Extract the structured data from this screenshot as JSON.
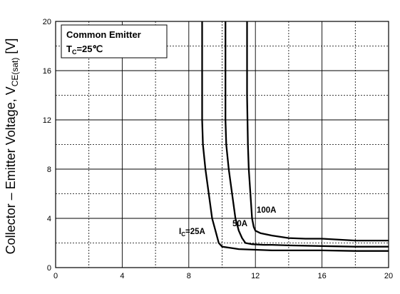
{
  "chart_data": {
    "type": "line",
    "xlabel": "",
    "ylabel": "Collector – Emitter Voltage, V",
    "ylabel_sub": "CE(sat)",
    "ylabel_unit": " [V]",
    "xlim": [
      0,
      20
    ],
    "ylim": [
      0,
      20
    ],
    "x_ticks": [
      0,
      4,
      8,
      12,
      16,
      20
    ],
    "y_ticks": [
      0,
      4,
      8,
      12,
      16,
      20
    ],
    "x_minor_ticks": [
      2,
      6,
      10,
      14,
      18
    ],
    "y_minor_ticks": [
      2,
      6,
      10,
      14,
      18
    ],
    "grid": true,
    "annotation": {
      "line1": "Common Emitter",
      "line2_main": "T",
      "line2_sub": "C",
      "line2_rest": "=25℃"
    },
    "series": [
      {
        "label_main": "I",
        "label_sub": "C",
        "label_rest": "=25A",
        "x": [
          8.8,
          8.8,
          8.85,
          9.0,
          9.2,
          9.4,
          9.6,
          9.8,
          10.0,
          10.5,
          11.0,
          12.0,
          13.0,
          14.0,
          16.0,
          18.0,
          20.0
        ],
        "y": [
          20.0,
          12.0,
          10.0,
          8.0,
          6.0,
          4.0,
          3.0,
          2.0,
          1.7,
          1.6,
          1.5,
          1.45,
          1.4,
          1.4,
          1.4,
          1.35,
          1.35
        ]
      },
      {
        "label": "50A",
        "x": [
          10.2,
          10.2,
          10.25,
          10.4,
          10.6,
          10.8,
          11.0,
          11.2,
          11.4,
          11.8,
          12.5,
          13.0,
          14.0,
          16.0,
          18.0,
          20.0
        ],
        "y": [
          20.0,
          12.0,
          10.0,
          8.0,
          6.0,
          4.0,
          3.0,
          2.4,
          2.0,
          1.9,
          1.85,
          1.85,
          1.8,
          1.75,
          1.7,
          1.7
        ],
        "unlabeled_line": true
      },
      {
        "label": "100A",
        "x": [
          11.5,
          11.5,
          11.55,
          11.6,
          11.7,
          11.8,
          11.9,
          12.0,
          12.3,
          13.0,
          14.0,
          15.0,
          16.0,
          18.0,
          20.0
        ],
        "y": [
          20.0,
          14.0,
          10.0,
          8.0,
          6.0,
          4.0,
          3.3,
          3.0,
          2.8,
          2.6,
          2.4,
          2.35,
          2.35,
          2.2,
          2.2
        ]
      }
    ]
  }
}
